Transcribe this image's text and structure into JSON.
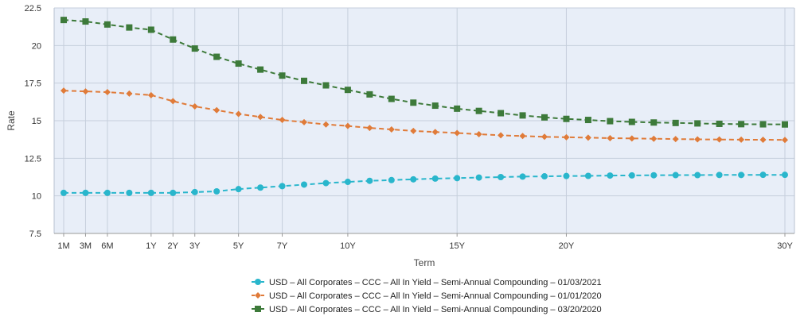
{
  "chart_data": {
    "type": "line",
    "xlabel": "Term",
    "ylabel": "Rate",
    "ylim": [
      7.5,
      22.5
    ],
    "yticks": [
      "7.5",
      "10",
      "12.5",
      "15",
      "17.5",
      "20",
      "22.5"
    ],
    "x_tick_labels": [
      {
        "term_years": 0.0833,
        "label": "1M"
      },
      {
        "term_years": 0.25,
        "label": "3M"
      },
      {
        "term_years": 0.5,
        "label": "6M"
      },
      {
        "term_years": 1,
        "label": "1Y"
      },
      {
        "term_years": 2,
        "label": "2Y"
      },
      {
        "term_years": 3,
        "label": "3Y"
      },
      {
        "term_years": 5,
        "label": "5Y"
      },
      {
        "term_years": 7,
        "label": "7Y"
      },
      {
        "term_years": 10,
        "label": "10Y"
      },
      {
        "term_years": 15,
        "label": "15Y"
      },
      {
        "term_years": 20,
        "label": "20Y"
      },
      {
        "term_years": 30,
        "label": "30Y"
      }
    ],
    "grid": true,
    "legend_position": "bottom",
    "x": [
      0.0833,
      0.25,
      0.5,
      0.75,
      1,
      2,
      3,
      4,
      5,
      6,
      7,
      8,
      9,
      10,
      11,
      12,
      13,
      14,
      15,
      16,
      17,
      18,
      19,
      20,
      21,
      22,
      23,
      24,
      25,
      26,
      27,
      28,
      29,
      30
    ],
    "series": [
      {
        "name": "USD – All Corporates – CCC – All In Yield – Semi-Annual Compounding – 01/03/2021",
        "color": "#29b6cc",
        "marker": "circle",
        "values": [
          10.2,
          10.2,
          10.2,
          10.2,
          10.2,
          10.2,
          10.25,
          10.3,
          10.45,
          10.55,
          10.65,
          10.75,
          10.85,
          10.93,
          11.0,
          11.05,
          11.1,
          11.15,
          11.18,
          11.22,
          11.25,
          11.28,
          11.3,
          11.32,
          11.33,
          11.35,
          11.36,
          11.37,
          11.38,
          11.38,
          11.39,
          11.39,
          11.4,
          11.4
        ]
      },
      {
        "name": "USD – All Corporates – CCC – All In Yield – Semi-Annual Compounding – 01/01/2020",
        "color": "#e07b39",
        "marker": "diamond",
        "values": [
          17.0,
          16.95,
          16.9,
          16.8,
          16.7,
          16.3,
          15.95,
          15.7,
          15.45,
          15.25,
          15.05,
          14.9,
          14.75,
          14.65,
          14.52,
          14.42,
          14.32,
          14.25,
          14.18,
          14.1,
          14.03,
          13.98,
          13.93,
          13.9,
          13.87,
          13.84,
          13.82,
          13.8,
          13.78,
          13.76,
          13.75,
          13.74,
          13.73,
          13.72
        ]
      },
      {
        "name": "USD – All Corporates – CCC – All In Yield – Semi-Annual Compounding – 03/20/2020",
        "color": "#3d7a3a",
        "marker": "square",
        "values": [
          21.7,
          21.6,
          21.4,
          21.2,
          21.05,
          20.4,
          19.8,
          19.25,
          18.8,
          18.4,
          18.0,
          17.65,
          17.35,
          17.05,
          16.75,
          16.45,
          16.2,
          16.0,
          15.8,
          15.65,
          15.5,
          15.35,
          15.22,
          15.12,
          15.05,
          14.97,
          14.92,
          14.88,
          14.85,
          14.82,
          14.79,
          14.77,
          14.76,
          14.75
        ]
      }
    ]
  }
}
